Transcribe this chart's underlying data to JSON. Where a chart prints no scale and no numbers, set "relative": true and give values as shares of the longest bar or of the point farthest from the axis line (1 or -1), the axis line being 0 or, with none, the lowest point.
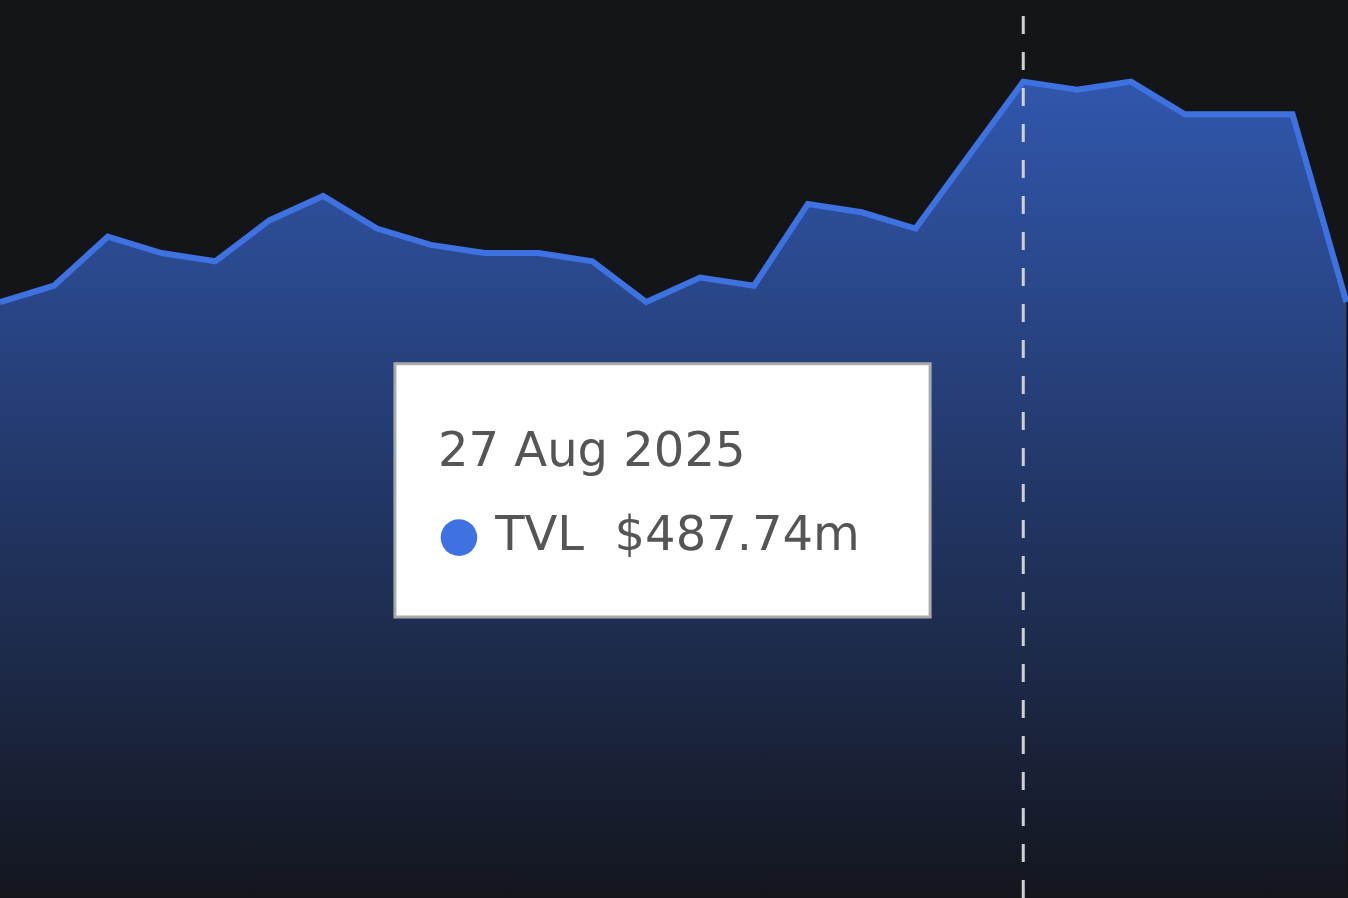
{
  "chart_data": {
    "type": "area",
    "relative": true,
    "categories": [
      null,
      null,
      null,
      null,
      null,
      null,
      null,
      null,
      null,
      null,
      null,
      null,
      null,
      null,
      null,
      null,
      null,
      null,
      null,
      null,
      null,
      null,
      null,
      null,
      null,
      null
    ],
    "series": [
      {
        "color": "#3d72e0",
        "values": [
          0.73,
          0.75,
          0.81,
          0.79,
          0.78,
          0.83,
          0.86,
          0.82,
          0.8,
          0.79,
          0.79,
          0.78,
          0.73,
          0.76,
          0.75,
          0.85,
          0.84,
          0.82,
          0.91,
          1,
          0.99,
          1,
          0.96,
          0.96,
          0.96,
          0.73
        ]
      }
    ],
    "annotations": [
      "27 Aug 2025",
      "● TVL  $487.74m"
    ],
    "legend": false,
    "grid": false
  }
}
